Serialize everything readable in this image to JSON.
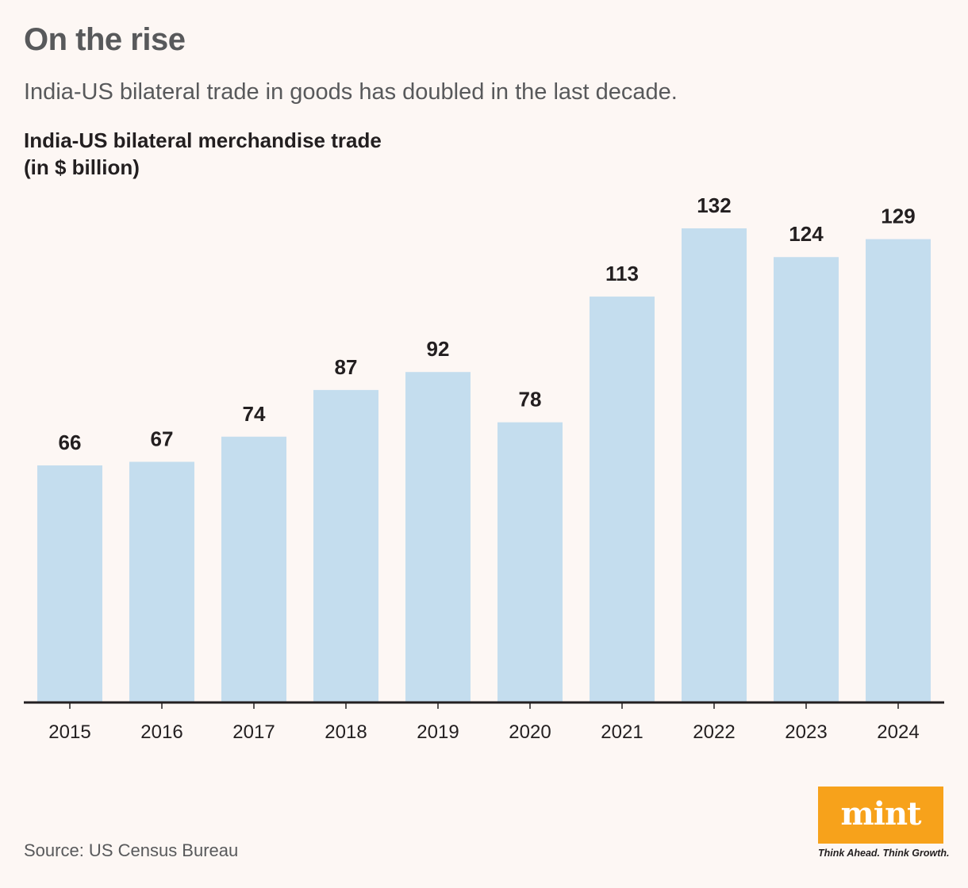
{
  "header": {
    "title": "On the rise",
    "subtitle": "India-US bilateral trade in goods has doubled in the last decade."
  },
  "chart_data": {
    "type": "bar",
    "title": "India-US bilateral merchandise trade",
    "title_unit": "(in $ billion)",
    "categories": [
      "2015",
      "2016",
      "2017",
      "2018",
      "2019",
      "2020",
      "2021",
      "2022",
      "2023",
      "2024"
    ],
    "values": [
      66,
      67,
      74,
      87,
      92,
      78,
      113,
      132,
      124,
      129
    ],
    "xlabel": "",
    "ylabel": "",
    "ylim": [
      0,
      132
    ],
    "grid": false,
    "bar_color": "#c4ddee",
    "axis_color": "#231f20"
  },
  "footer": {
    "source": "Source: US Census Bureau",
    "logo": "mint",
    "tagline": "Think Ahead. Think Growth.",
    "logo_color": "#f7a21b"
  }
}
